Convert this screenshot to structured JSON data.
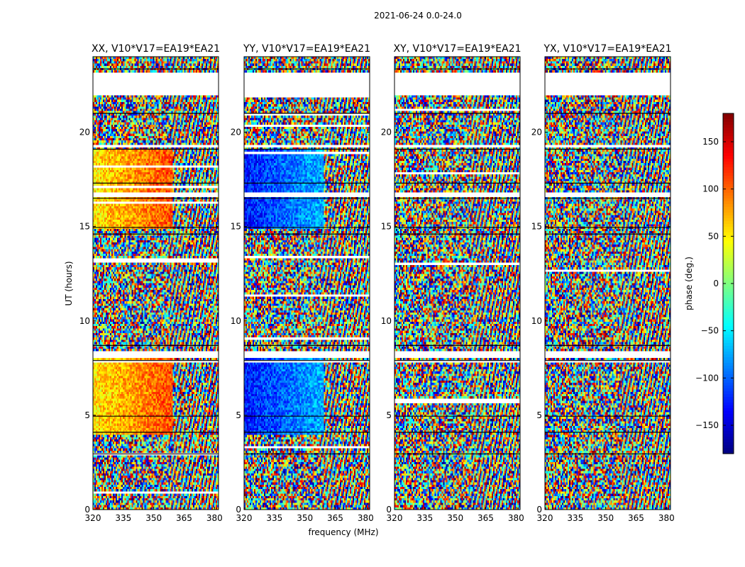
{
  "figure": {
    "suptitle": "2021-06-24 0.0-24.0",
    "xlabel": "frequency (MHz)",
    "ylabel": "UT (hours)",
    "colorbar_label": "phase (deg.)"
  },
  "chart_data": {
    "type": "heatmap",
    "description_kind": "dynamic phase spectrum, four correlation products",
    "x_range": [
      320,
      382
    ],
    "y_range": [
      0,
      24
    ],
    "x_ticks": [
      "320",
      "335",
      "350",
      "365",
      "380"
    ],
    "x_tick_values": [
      320,
      335,
      350,
      365,
      380
    ],
    "y_ticks": [
      "0",
      "5",
      "10",
      "15",
      "20"
    ],
    "y_tick_values": [
      0,
      5,
      10,
      15,
      20
    ],
    "color_range": [
      -180,
      180
    ],
    "colorbar_ticks": [
      "150",
      "100",
      "50",
      "0",
      "−50",
      "−100",
      "−150"
    ],
    "colorbar_tick_values": [
      150,
      100,
      50,
      0,
      -50,
      -100,
      -150
    ],
    "colormap": "jet",
    "panels": [
      {
        "title": "XX, V10*V17=EA19*EA21",
        "product": "XX"
      },
      {
        "title": "YY, V10*V17=EA19*EA21",
        "product": "YY"
      },
      {
        "title": "XY, V10*V17=EA19*EA21",
        "product": "XY"
      },
      {
        "title": "YX, V10*V17=EA19*EA21",
        "product": "YX"
      }
    ],
    "data_gaps_hours": [
      [
        22.0,
        23.2
      ],
      [
        16.6,
        16.8
      ],
      [
        8.1,
        8.4
      ],
      [
        19.2,
        19.3
      ],
      [
        7.8,
        7.9
      ]
    ],
    "scan_boundaries_hours": [
      2.95,
      4.1,
      4.95,
      7.9,
      8.7,
      14.6,
      14.95,
      16.5,
      17.3,
      19.1,
      21.0,
      23.35
    ],
    "colors": {
      "axis": "#000000",
      "gap": "#ffffff"
    }
  }
}
